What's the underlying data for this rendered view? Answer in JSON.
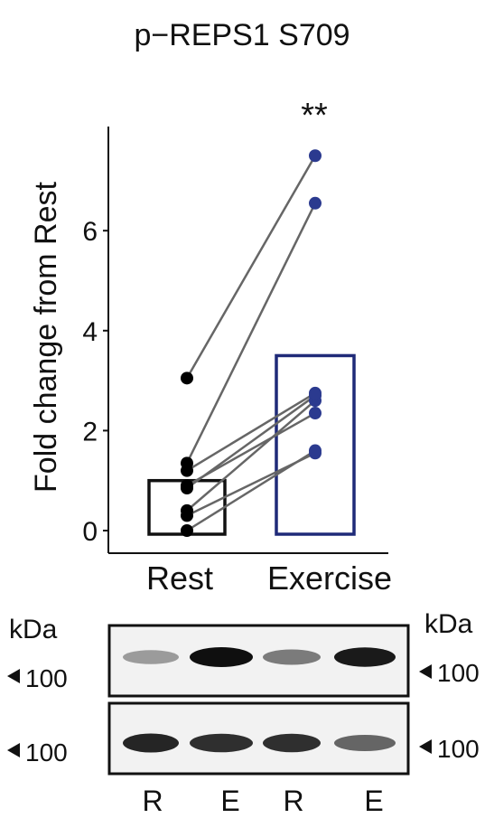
{
  "chart_data": {
    "type": "scatter",
    "title": "p−REPS1 S709",
    "ylabel": "Fold change from Rest",
    "xlabel": "",
    "categories": [
      "Rest",
      "Exercise"
    ],
    "ylim": [
      -0.3,
      7.9
    ],
    "yticks": [
      0,
      2,
      4,
      6
    ],
    "grid": false,
    "legend": "none",
    "significance": "**",
    "bars": [
      {
        "category": "Rest",
        "value": 1.0,
        "color": "#111111"
      },
      {
        "category": "Exercise",
        "value": 3.5,
        "color": "#1f2a78"
      }
    ],
    "pairs": [
      {
        "rest": 0.0,
        "exercise": 1.6
      },
      {
        "rest": 0.3,
        "exercise": 1.55
      },
      {
        "rest": 0.4,
        "exercise": 2.6
      },
      {
        "rest": 0.85,
        "exercise": 2.7
      },
      {
        "rest": 1.2,
        "exercise": 2.75
      },
      {
        "rest": 1.35,
        "exercise": 6.55
      },
      {
        "rest": 3.05,
        "exercise": 7.5
      },
      {
        "rest": 0.9,
        "exercise": 2.35
      }
    ],
    "point_colors": {
      "Rest": "#000000",
      "Exercise": "#2b3a8f"
    },
    "line_color": "#666666"
  },
  "blot": {
    "kda_label": "kDa",
    "left_markers": [
      "100",
      "100"
    ],
    "right_markers": [
      "100",
      "100"
    ],
    "lanes": [
      "R",
      "E",
      "R",
      "E"
    ],
    "top_band_intensity": [
      0.35,
      1.0,
      0.5,
      0.95
    ],
    "bottom_band_intensity": [
      0.9,
      0.85,
      0.85,
      0.6
    ]
  }
}
